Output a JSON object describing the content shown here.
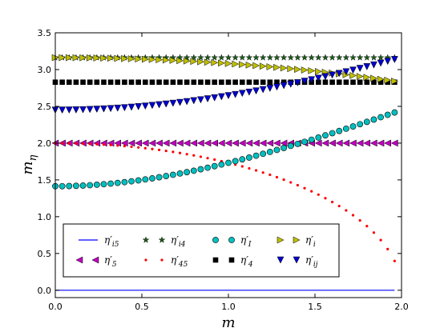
{
  "chart_data": {
    "type": "scatter",
    "xlabel": "m",
    "ylabel": "m",
    "ylabel_sub": "η",
    "xlim": [
      0.0,
      2.0
    ],
    "ylim": [
      -0.1,
      3.5
    ],
    "xticks": [
      "0.0",
      "0.5",
      "1.0",
      "1.5",
      "2.0"
    ],
    "yticks": [
      "0.0",
      "0.5",
      "1.0",
      "1.5",
      "2.0",
      "2.5",
      "3.0",
      "3.5"
    ],
    "grid": false,
    "legend_position": "lower-left",
    "m_max": 1.96,
    "series": [
      {
        "name": "η′",
        "sub": "i5",
        "marker": "line",
        "color": "#0000ff",
        "formula": "zero"
      },
      {
        "name": "η′",
        "sub": "5",
        "marker": "triangle-left",
        "color": "#bf00bf",
        "formula": "const_2"
      },
      {
        "name": "η′",
        "sub": "i4",
        "marker": "star",
        "color": "#1a5c1a",
        "formula": "const_3_16"
      },
      {
        "name": "η′",
        "sub": "45",
        "marker": "dot",
        "color": "#ff0000",
        "formula": "sqrt_4_minus_m2"
      },
      {
        "name": "η′",
        "sub": "I",
        "marker": "circle",
        "color": "#00bfbf",
        "formula": "sqrt_2_plus_m2"
      },
      {
        "name": "η′",
        "sub": "4",
        "marker": "square",
        "color": "#000000",
        "formula": "const_2_84"
      },
      {
        "name": "η′",
        "sub": "i",
        "marker": "triangle-right",
        "color": "#bfbf00",
        "formula": "sqrt_10_minus_m2_over_2"
      },
      {
        "name": "η′",
        "sub": "ij",
        "marker": "triangle-down",
        "color": "#0000cc",
        "formula": "sqrt_6_plus_m2"
      }
    ]
  }
}
